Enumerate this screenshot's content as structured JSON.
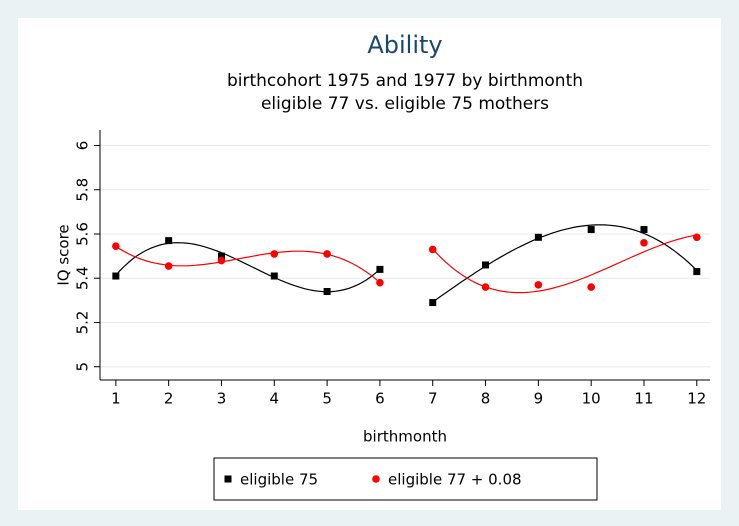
{
  "chart_data": {
    "type": "scatter",
    "title": "Ability",
    "subtitle": [
      "birthcohort 1975 and 1977 by birthmonth",
      "eligible 77 vs. eligible 75 mothers"
    ],
    "x_label": "birthmonth",
    "y_label": "IQ score",
    "x": [
      1,
      2,
      3,
      4,
      5,
      6,
      7,
      8,
      9,
      10,
      11,
      12
    ],
    "series": [
      {
        "name": "eligible 75",
        "color": "#000000",
        "marker": "square",
        "values": [
          5.41,
          5.57,
          5.5,
          5.41,
          5.34,
          5.44,
          5.29,
          5.46,
          5.585,
          5.62,
          5.62,
          5.43
        ]
      },
      {
        "name": "eligible 77 + 0.08",
        "color": "#ff0000",
        "marker": "circle",
        "values": [
          5.545,
          5.455,
          5.48,
          5.51,
          5.51,
          5.38,
          5.53,
          5.36,
          5.37,
          5.36,
          5.56,
          5.585
        ]
      }
    ],
    "xlim": [
      0.7,
      12.25
    ],
    "xticks": [
      1,
      2,
      3,
      4,
      5,
      6,
      7,
      8,
      9,
      10,
      11,
      12
    ],
    "ylim": [
      4.94,
      6.07
    ],
    "yticks": [
      5,
      5.2,
      5.4,
      5.6,
      5.8,
      6
    ],
    "grid": true,
    "legend": "bottom"
  }
}
